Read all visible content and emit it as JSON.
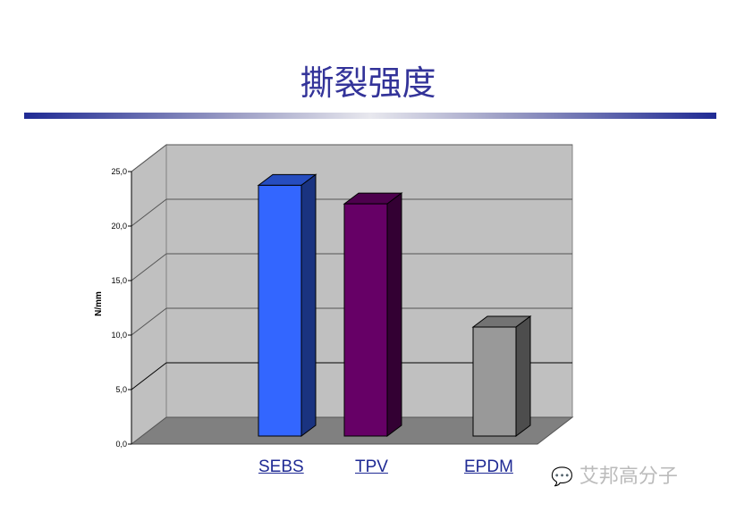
{
  "title": "撕裂强度",
  "watermark": "艾邦高分子",
  "chart_data": {
    "type": "bar",
    "style": "3d-column",
    "categories": [
      "SEBS",
      "TPV",
      "EPDM"
    ],
    "values": [
      23.0,
      21.3,
      10.0
    ],
    "colors": [
      "#3366ff",
      "#660066",
      "#999999"
    ],
    "ylabel": "N/mm",
    "yticks": [
      "0,0",
      "5,0",
      "10,0",
      "15,0",
      "20,0",
      "25,0"
    ],
    "ylim": [
      0,
      25
    ],
    "grid": true,
    "legend": "none"
  }
}
